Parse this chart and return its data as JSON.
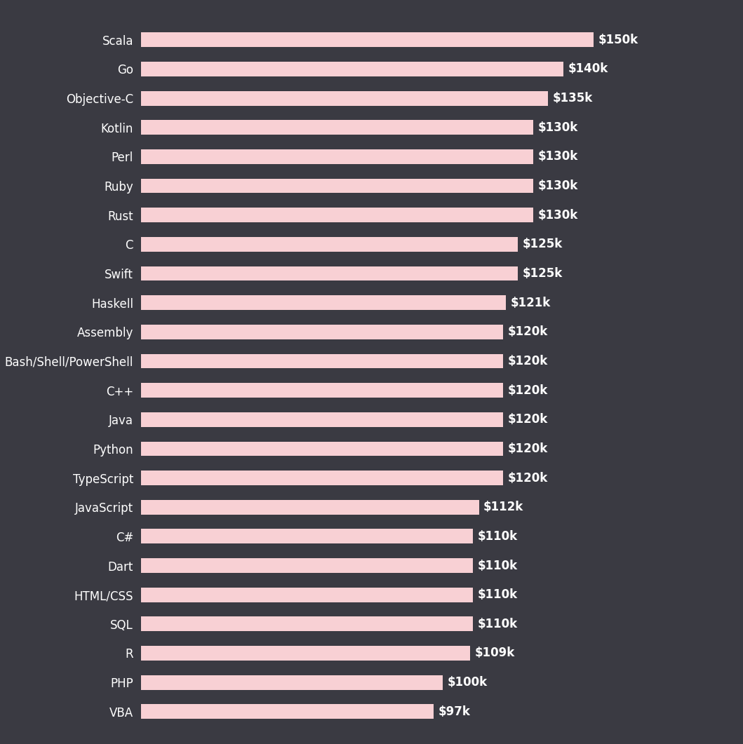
{
  "categories": [
    "Scala",
    "Go",
    "Objective-C",
    "Kotlin",
    "Perl",
    "Ruby",
    "Rust",
    "C",
    "Swift",
    "Haskell",
    "Assembly",
    "Bash/Shell/PowerShell",
    "C++",
    "Java",
    "Python",
    "TypeScript",
    "JavaScript",
    "C#",
    "Dart",
    "HTML/CSS",
    "SQL",
    "R",
    "PHP",
    "VBA"
  ],
  "values": [
    150,
    140,
    135,
    130,
    130,
    130,
    130,
    125,
    125,
    121,
    120,
    120,
    120,
    120,
    120,
    120,
    112,
    110,
    110,
    110,
    110,
    109,
    100,
    97
  ],
  "labels": [
    "$150k",
    "$140k",
    "$135k",
    "$130k",
    "$130k",
    "$130k",
    "$130k",
    "$125k",
    "$125k",
    "$121k",
    "$120k",
    "$120k",
    "$120k",
    "$120k",
    "$120k",
    "$120k",
    "$112k",
    "$110k",
    "$110k",
    "$110k",
    "$110k",
    "$109k",
    "$100k",
    "$97k"
  ],
  "bar_color": "#f8d0d4",
  "background_color": "#3a3a42",
  "text_color": "#ffffff",
  "label_fontsize": 12,
  "value_fontsize": 12,
  "bar_height": 0.5,
  "xlim_max": 170
}
